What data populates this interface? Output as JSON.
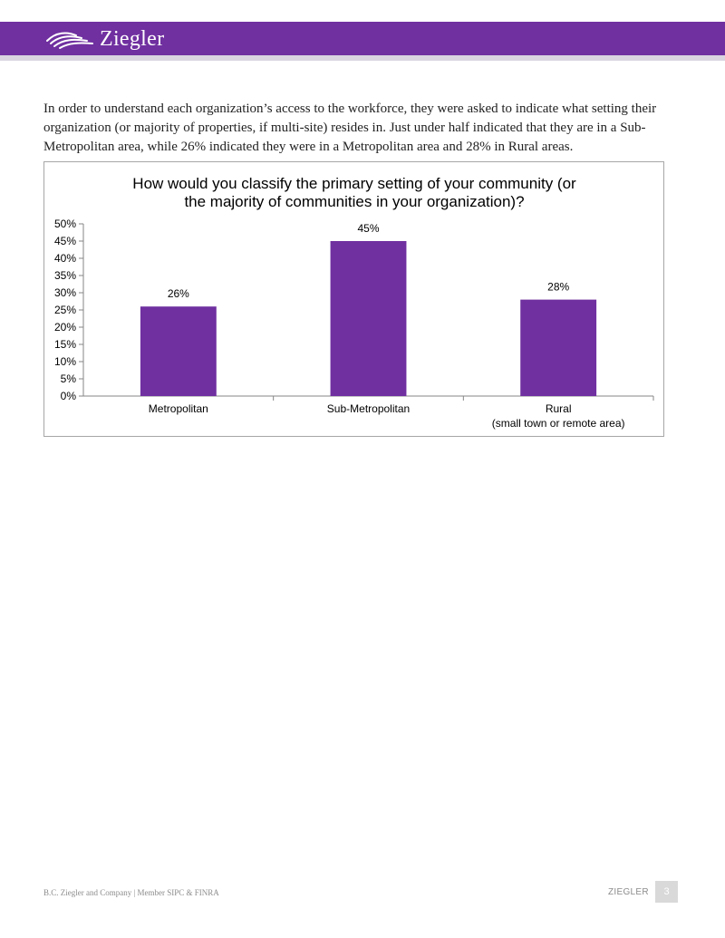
{
  "header": {
    "logo_text": "Ziegler",
    "logo_icon": "ziegler-swoosh-icon",
    "bar_color": "#7030a0"
  },
  "intro_text": "In order to understand each organization’s access to the workforce, they were asked to indicate what setting their organization (or majority of properties, if multi-site) resides in. Just under half indicated that they are in a Sub-Metropolitan area, while 26% indicated they were in a Metropolitan area and 28% in Rural areas.",
  "chart_data": {
    "type": "bar",
    "title": "How would you classify the primary setting of your community (or the majority of communities in your organization)?",
    "title_lines": [
      "How would you classify the primary setting of your community (or",
      "the majority of communities in your organization)?"
    ],
    "categories": [
      "Metropolitan",
      "Sub-Metropolitan",
      "Rural"
    ],
    "category_sublabels": [
      "",
      "",
      "(small town or remote area)"
    ],
    "values": [
      26,
      45,
      28
    ],
    "data_labels": [
      "26%",
      "45%",
      "28%"
    ],
    "y_ticks": [
      0,
      5,
      10,
      15,
      20,
      25,
      30,
      35,
      40,
      45,
      50
    ],
    "y_tick_suffix": "%",
    "ylim": [
      0,
      50
    ],
    "xlabel": "",
    "ylabel": "",
    "grid": false,
    "legend": "none",
    "bar_color": "#7030a0"
  },
  "footer": {
    "left": "B.C. Ziegler and Company | Member SIPC & FINRA",
    "brand": "ZIEGLER",
    "page_number": "3"
  }
}
